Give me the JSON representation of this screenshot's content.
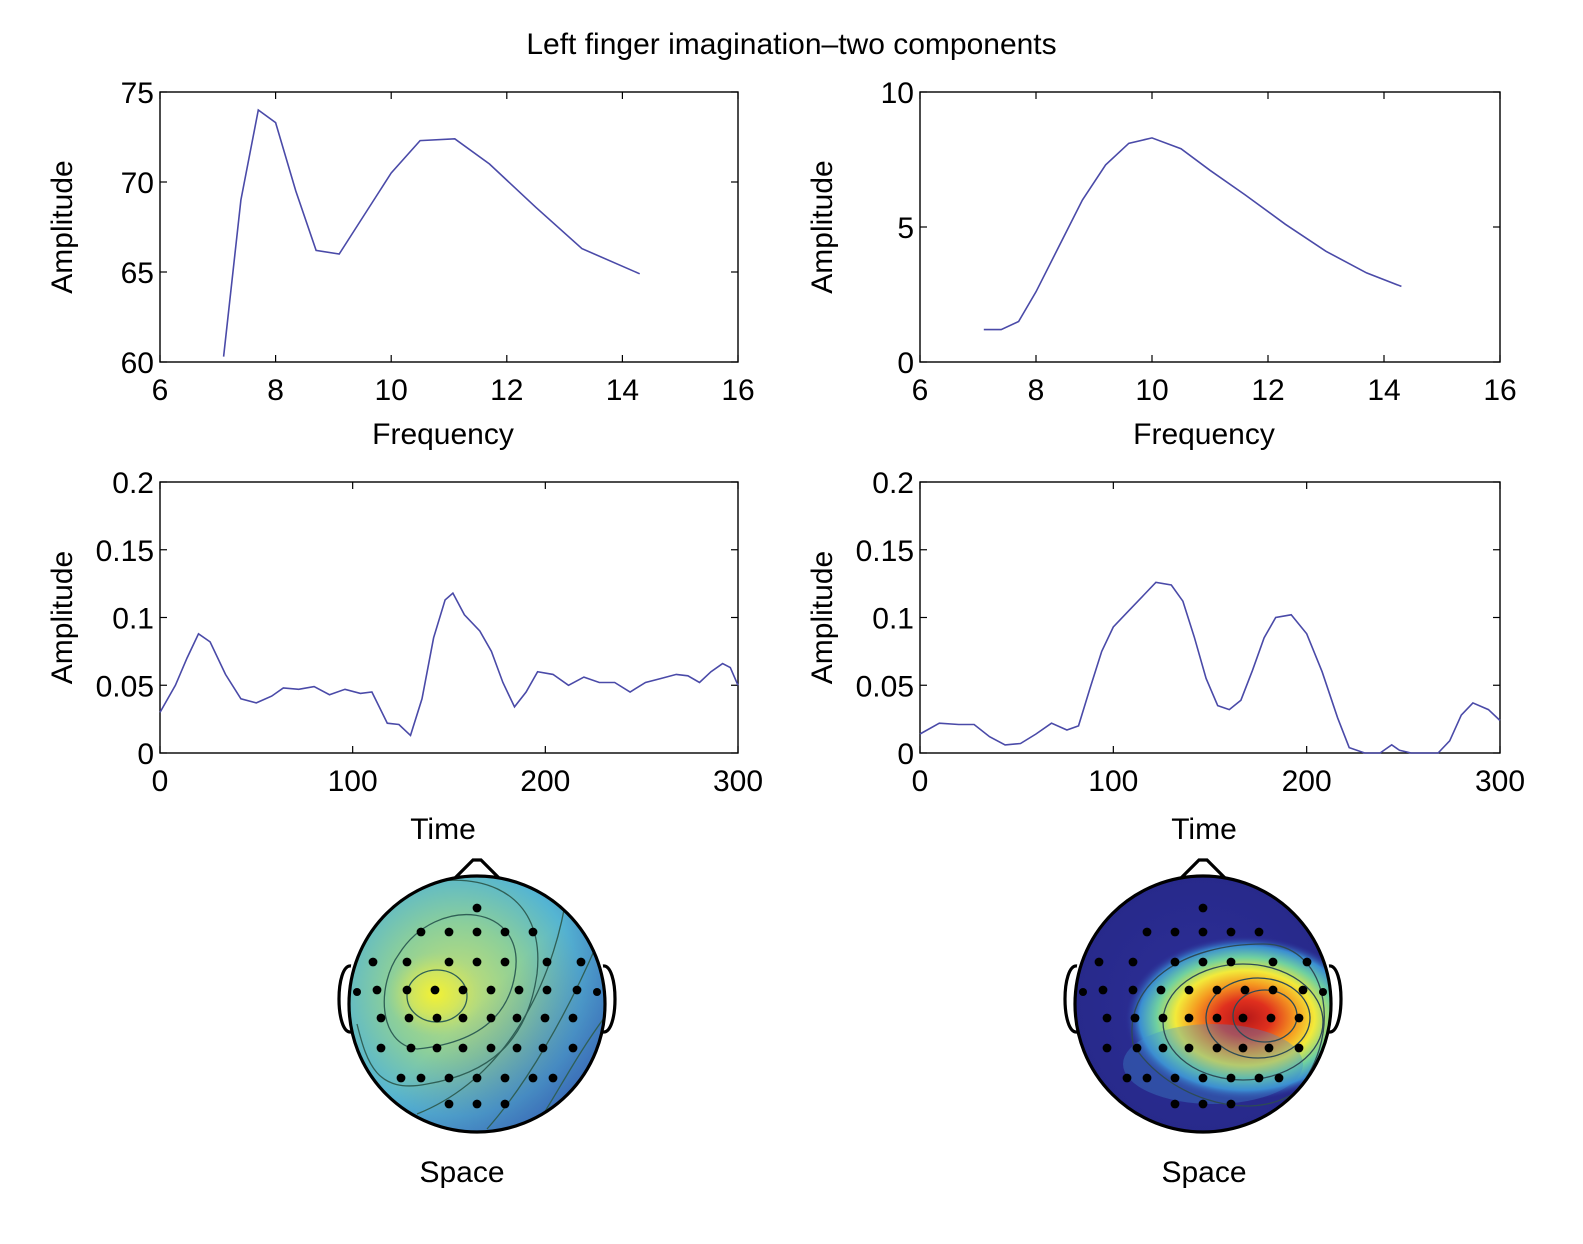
{
  "title": "Left finger imagination–two components",
  "colors": {
    "line": "#4a4aa8",
    "frame": "#000000"
  },
  "chart_data": [
    {
      "type": "line",
      "xlabel": "Frequency",
      "ylabel": "Amplitude",
      "xlim": [
        6,
        16
      ],
      "ylim": [
        60,
        75
      ],
      "xticks": [
        6,
        8,
        10,
        12,
        14,
        16
      ],
      "yticks": [
        60,
        65,
        70,
        75
      ],
      "series": [
        {
          "x": [
            7.1,
            7.4,
            7.7,
            8.0,
            8.35,
            8.7,
            9.1,
            9.5,
            10.0,
            10.5,
            11.1,
            11.7,
            12.5,
            13.3,
            14.3
          ],
          "y": [
            60.3,
            69.0,
            74.0,
            73.3,
            69.5,
            66.2,
            66.0,
            68.0,
            70.5,
            72.3,
            72.4,
            71.0,
            68.6,
            66.3,
            64.9
          ]
        }
      ]
    },
    {
      "type": "line",
      "xlabel": "Frequency",
      "ylabel": "Amplitude",
      "xlim": [
        6,
        16
      ],
      "ylim": [
        0,
        10
      ],
      "xticks": [
        6,
        8,
        10,
        12,
        14,
        16
      ],
      "yticks": [
        0,
        5,
        10
      ],
      "series": [
        {
          "x": [
            7.1,
            7.4,
            7.7,
            8.0,
            8.4,
            8.8,
            9.2,
            9.6,
            10.0,
            10.5,
            11.0,
            11.6,
            12.3,
            13.0,
            13.7,
            14.3
          ],
          "y": [
            1.2,
            1.2,
            1.5,
            2.6,
            4.3,
            6.0,
            7.3,
            8.1,
            8.3,
            7.9,
            7.1,
            6.2,
            5.1,
            4.1,
            3.3,
            2.8
          ]
        }
      ]
    },
    {
      "type": "line",
      "xlabel": "Time",
      "ylabel": "Amplitude",
      "xlim": [
        0,
        300
      ],
      "ylim": [
        0,
        0.2
      ],
      "xticks": [
        0,
        100,
        200,
        300
      ],
      "yticks": [
        0,
        0.05,
        0.1,
        0.15,
        0.2
      ],
      "series": [
        {
          "x": [
            0,
            8,
            14,
            20,
            26,
            34,
            42,
            50,
            58,
            64,
            72,
            80,
            88,
            96,
            104,
            110,
            118,
            124,
            130,
            136,
            142,
            148,
            152,
            158,
            166,
            172,
            178,
            184,
            190,
            196,
            204,
            212,
            220,
            228,
            236,
            244,
            252,
            260,
            268,
            274,
            280,
            286,
            292,
            296,
            300
          ],
          "y": [
            0.03,
            0.05,
            0.07,
            0.088,
            0.082,
            0.058,
            0.04,
            0.037,
            0.042,
            0.048,
            0.047,
            0.049,
            0.043,
            0.047,
            0.044,
            0.045,
            0.022,
            0.021,
            0.013,
            0.04,
            0.085,
            0.113,
            0.118,
            0.102,
            0.09,
            0.075,
            0.052,
            0.034,
            0.045,
            0.06,
            0.058,
            0.05,
            0.056,
            0.052,
            0.052,
            0.045,
            0.052,
            0.055,
            0.058,
            0.057,
            0.052,
            0.06,
            0.066,
            0.063,
            0.05
          ]
        }
      ]
    },
    {
      "type": "line",
      "xlabel": "Time",
      "ylabel": "Amplitude",
      "xlim": [
        0,
        300
      ],
      "ylim": [
        0,
        0.2
      ],
      "xticks": [
        0,
        100,
        200,
        300
      ],
      "yticks": [
        0,
        0.05,
        0.1,
        0.15,
        0.2
      ],
      "series": [
        {
          "x": [
            0,
            10,
            20,
            28,
            36,
            44,
            52,
            60,
            68,
            76,
            82,
            88,
            94,
            100,
            108,
            116,
            122,
            130,
            136,
            142,
            148,
            154,
            160,
            166,
            172,
            178,
            184,
            192,
            200,
            208,
            216,
            222,
            230,
            238,
            244,
            248,
            254,
            262,
            268,
            274,
            280,
            286,
            294,
            300
          ],
          "y": [
            0.014,
            0.022,
            0.021,
            0.021,
            0.012,
            0.006,
            0.007,
            0.014,
            0.022,
            0.017,
            0.02,
            0.048,
            0.075,
            0.093,
            0.105,
            0.117,
            0.126,
            0.124,
            0.112,
            0.085,
            0.055,
            0.035,
            0.032,
            0.039,
            0.061,
            0.085,
            0.1,
            0.102,
            0.088,
            0.06,
            0.026,
            0.004,
            0.0,
            0.0,
            0.006,
            0.002,
            0.0,
            0.0,
            0.0,
            0.009,
            0.028,
            0.037,
            0.032,
            0.024
          ]
        }
      ]
    }
  ],
  "scalp_maps": [
    {
      "label": "Space",
      "hotspot": "left-central",
      "peak_color": "#f0ef30",
      "background": "#68b8c8"
    },
    {
      "label": "Space",
      "hotspot": "right-central",
      "peak_color": "#c81a1a",
      "background": "#2a2a90"
    }
  ]
}
